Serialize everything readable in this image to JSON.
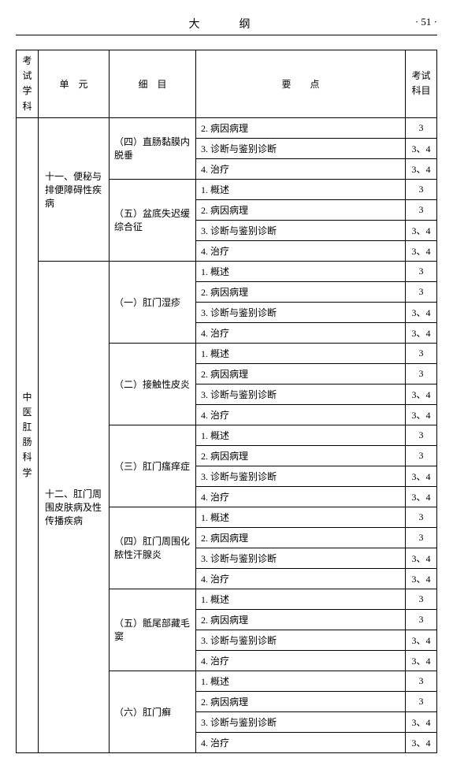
{
  "header": {
    "title": "大　纲",
    "page": "· 51 ·"
  },
  "columns": {
    "subject": "考试学科",
    "unit": "单　元",
    "detail": "细　目",
    "points": "要　　点",
    "exam": "考试科目"
  },
  "subject_label": "中医肛肠科学",
  "units": [
    {
      "label": "十一、便秘与排便障碍性疾病",
      "details": [
        {
          "label": "（四）直肠黏膜内脱垂",
          "points": [
            {
              "text": "2. 病因病理",
              "exam": "3"
            },
            {
              "text": "3. 诊断与鉴别诊断",
              "exam": "3、4"
            },
            {
              "text": "4. 治疗",
              "exam": "3、4"
            }
          ]
        },
        {
          "label": "（五）盆底失迟缓综合征",
          "points": [
            {
              "text": "1. 概述",
              "exam": "3"
            },
            {
              "text": "2. 病因病理",
              "exam": "3"
            },
            {
              "text": "3. 诊断与鉴别诊断",
              "exam": "3、4"
            },
            {
              "text": "4. 治疗",
              "exam": "3、4"
            }
          ]
        }
      ]
    },
    {
      "label": "十二、肛门周围皮肤病及性传播疾病",
      "details": [
        {
          "label": "（一）肛门湿疹",
          "points": [
            {
              "text": "1. 概述",
              "exam": "3"
            },
            {
              "text": "2. 病因病理",
              "exam": "3"
            },
            {
              "text": "3. 诊断与鉴别诊断",
              "exam": "3、4"
            },
            {
              "text": "4. 治疗",
              "exam": "3、4"
            }
          ]
        },
        {
          "label": "（二）接触性皮炎",
          "points": [
            {
              "text": "1. 概述",
              "exam": "3"
            },
            {
              "text": "2. 病因病理",
              "exam": "3"
            },
            {
              "text": "3. 诊断与鉴别诊断",
              "exam": "3、4"
            },
            {
              "text": "4. 治疗",
              "exam": "3、4"
            }
          ]
        },
        {
          "label": "（三）肛门瘙痒症",
          "points": [
            {
              "text": "1. 概述",
              "exam": "3"
            },
            {
              "text": "2. 病因病理",
              "exam": "3"
            },
            {
              "text": "3. 诊断与鉴别诊断",
              "exam": "3、4"
            },
            {
              "text": "4. 治疗",
              "exam": "3、4"
            }
          ]
        },
        {
          "label": "（四）肛门周围化脓性汗腺炎",
          "points": [
            {
              "text": "1. 概述",
              "exam": "3"
            },
            {
              "text": "2. 病因病理",
              "exam": "3"
            },
            {
              "text": "3. 诊断与鉴别诊断",
              "exam": "3、4"
            },
            {
              "text": "4. 治疗",
              "exam": "3、4"
            }
          ]
        },
        {
          "label": "（五）骶尾部藏毛窦",
          "points": [
            {
              "text": "1. 概述",
              "exam": "3"
            },
            {
              "text": "2. 病因病理",
              "exam": "3"
            },
            {
              "text": "3. 诊断与鉴别诊断",
              "exam": "3、4"
            },
            {
              "text": "4. 治疗",
              "exam": "3、4"
            }
          ]
        },
        {
          "label": "（六）肛门癣",
          "points": [
            {
              "text": "1. 概述",
              "exam": "3"
            },
            {
              "text": "2. 病因病理",
              "exam": "3"
            },
            {
              "text": "3. 诊断与鉴别诊断",
              "exam": "3、4"
            },
            {
              "text": "4. 治疗",
              "exam": "3、4"
            }
          ]
        }
      ]
    }
  ]
}
